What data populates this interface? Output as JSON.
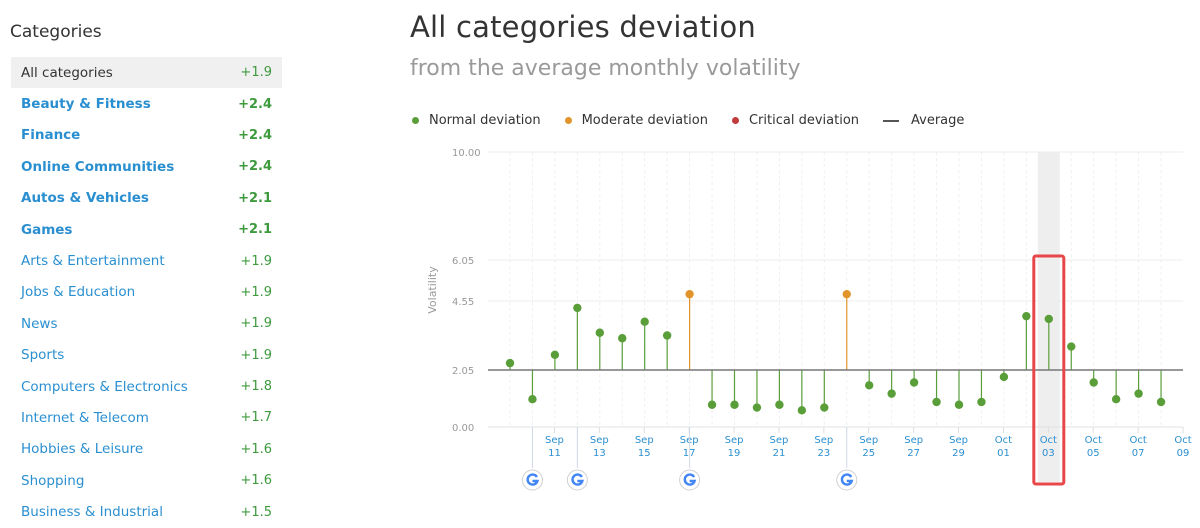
{
  "sidebar": {
    "title": "Categories",
    "items": [
      {
        "label": "All categories",
        "value": "+1.9",
        "active": true,
        "bold": false
      },
      {
        "label": "Beauty & Fitness",
        "value": "+2.4",
        "bold": true
      },
      {
        "label": "Finance",
        "value": "+2.4",
        "bold": true
      },
      {
        "label": "Online Communities",
        "value": "+2.4",
        "bold": true
      },
      {
        "label": "Autos & Vehicles",
        "value": "+2.1",
        "bold": true
      },
      {
        "label": "Games",
        "value": "+2.1",
        "bold": true
      },
      {
        "label": "Arts & Entertainment",
        "value": "+1.9",
        "bold": false
      },
      {
        "label": "Jobs & Education",
        "value": "+1.9",
        "bold": false
      },
      {
        "label": "News",
        "value": "+1.9",
        "bold": false
      },
      {
        "label": "Sports",
        "value": "+1.9",
        "bold": false
      },
      {
        "label": "Computers & Electronics",
        "value": "+1.8",
        "bold": false
      },
      {
        "label": "Internet & Telecom",
        "value": "+1.7",
        "bold": false
      },
      {
        "label": "Hobbies & Leisure",
        "value": "+1.6",
        "bold": false
      },
      {
        "label": "Shopping",
        "value": "+1.6",
        "bold": false
      },
      {
        "label": "Business & Industrial",
        "value": "+1.5",
        "bold": false
      }
    ]
  },
  "header": {
    "title": "All categories deviation",
    "subtitle": "from the average monthly volatility"
  },
  "legend": {
    "normal": "Normal deviation",
    "moderate": "Moderate deviation",
    "critical": "Critical deviation",
    "average": "Average"
  },
  "colors": {
    "normal": "#5a9e3a",
    "moderate": "#e0942a",
    "critical": "#c23b3b",
    "average": "#777777",
    "highlight_box": "#e8474a",
    "link": "#2a8fd0"
  },
  "chart_data": {
    "type": "lollipop",
    "ylabel": "Volatility",
    "yticks": [
      0.0,
      2.05,
      4.55,
      6.05,
      10.0
    ],
    "ytick_labels": [
      "0.00",
      "2.05",
      "4.55",
      "6.05",
      "10.00"
    ],
    "average": 2.05,
    "dates": [
      "Sep 10",
      "Sep 11",
      "Sep 12",
      "Sep 13",
      "Sep 14",
      "Sep 15",
      "Sep 16",
      "Sep 17",
      "Sep 18",
      "Sep 19",
      "Sep 20",
      "Sep 21",
      "Sep 22",
      "Sep 23",
      "Sep 24",
      "Sep 25",
      "Sep 26",
      "Sep 27",
      "Sep 28",
      "Sep 29",
      "Sep 30",
      "Oct 01",
      "Oct 02",
      "Oct 03",
      "Oct 04",
      "Oct 05",
      "Oct 06",
      "Oct 07",
      "Oct 08",
      "Oct 09"
    ],
    "values": [
      2.3,
      1.0,
      2.6,
      4.3,
      3.4,
      3.2,
      3.8,
      3.3,
      4.8,
      0.8,
      0.8,
      0.7,
      0.8,
      0.6,
      0.7,
      4.8,
      1.5,
      1.2,
      1.6,
      0.9,
      0.8,
      0.9,
      1.8,
      4.0,
      3.9,
      2.9,
      1.6,
      1.0,
      1.2,
      0.9
    ],
    "status": [
      "normal",
      "normal",
      "normal",
      "normal",
      "normal",
      "normal",
      "normal",
      "normal",
      "moderate",
      "normal",
      "normal",
      "normal",
      "normal",
      "normal",
      "normal",
      "moderate",
      "normal",
      "normal",
      "normal",
      "normal",
      "normal",
      "normal",
      "normal",
      "normal",
      "normal",
      "normal",
      "normal",
      "normal",
      "normal",
      "normal"
    ],
    "x_tick_labels": [
      {
        "index": 1,
        "month": "Sep",
        "day": "11"
      },
      {
        "index": 3,
        "month": "Sep",
        "day": "13"
      },
      {
        "index": 5,
        "month": "Sep",
        "day": "15"
      },
      {
        "index": 7,
        "month": "Sep",
        "day": "17"
      },
      {
        "index": 9,
        "month": "Sep",
        "day": "19"
      },
      {
        "index": 11,
        "month": "Sep",
        "day": "21"
      },
      {
        "index": 13,
        "month": "Sep",
        "day": "23"
      },
      {
        "index": 15,
        "month": "Sep",
        "day": "25"
      },
      {
        "index": 17,
        "month": "Sep",
        "day": "27"
      },
      {
        "index": 19,
        "month": "Sep",
        "day": "29"
      },
      {
        "index": 21,
        "month": "Oct",
        "day": "01"
      },
      {
        "index": 23,
        "month": "Oct",
        "day": "03"
      },
      {
        "index": 25,
        "month": "Oct",
        "day": "05"
      },
      {
        "index": 27,
        "month": "Oct",
        "day": "07"
      },
      {
        "index": 29,
        "month": "Oct",
        "day": "09"
      }
    ],
    "google_update_dates": [
      "Sep 11",
      "Sep 13",
      "Sep 18",
      "Sep 25"
    ],
    "highlighted_date": "Oct 04",
    "grid": true
  }
}
